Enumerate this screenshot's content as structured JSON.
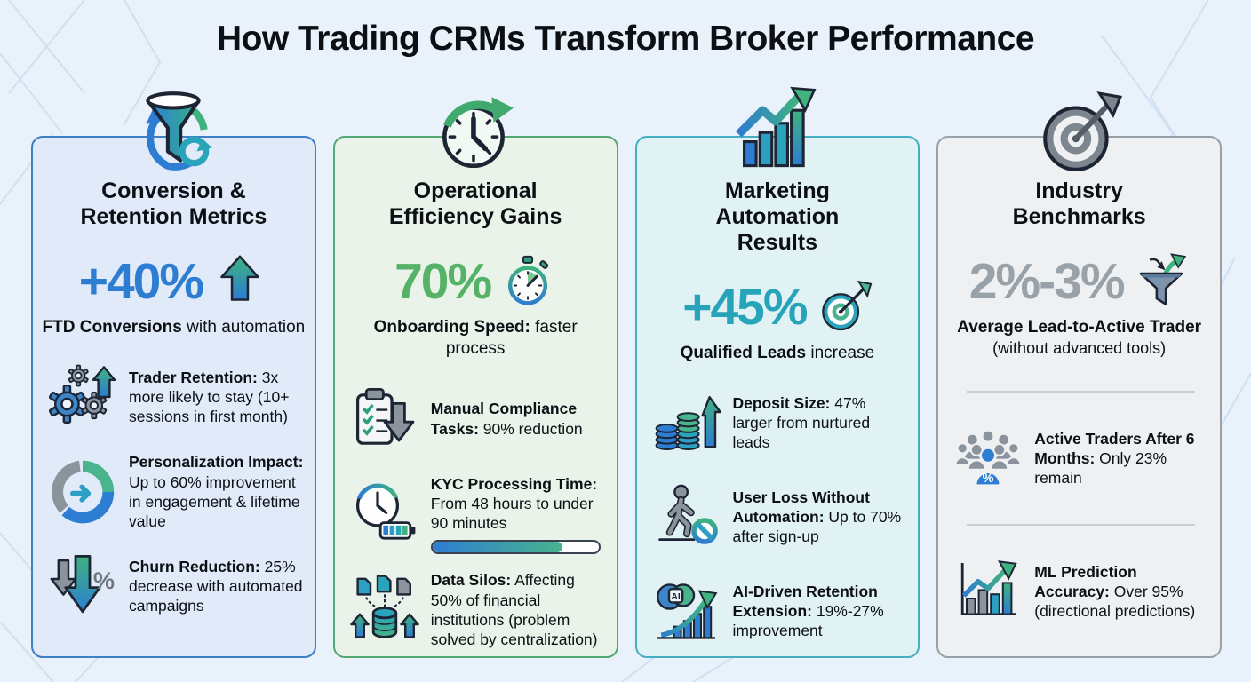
{
  "title": "How Trading CRMs Transform Broker Performance",
  "columns": [
    {
      "title": "Conversion & Retention Metrics",
      "border_color": "#3e7fc6",
      "bg_color": "#e0eaf8",
      "stat": "+40%",
      "stat_color": "#2d7dd2",
      "stat_icon": "up-arrow",
      "caption_bold": "FTD Conversions",
      "caption_rest": "with automation",
      "items": [
        {
          "icon": "gears-up-arrow",
          "bold": "Trader Retention:",
          "text": "3x more likely to stay (10+ sessions in first month)"
        },
        {
          "icon": "donut-refresh",
          "bold": "Personalization Impact:",
          "text": "Up to 60% improvement in engagement & lifetime value"
        },
        {
          "icon": "down-arrows-percent",
          "bold": "Churn Reduction:",
          "text": "25% decrease with automated campaigns"
        }
      ]
    },
    {
      "title": "Operational Efficiency Gains",
      "border_color": "#55a873",
      "bg_color": "#e9f3e9",
      "stat": "70%",
      "stat_color": "#56b266",
      "stat_icon": "stopwatch",
      "caption_bold": "Onboarding Speed:",
      "caption_rest": "faster process",
      "items": [
        {
          "icon": "clipboard-check-down",
          "bold": "Manual Compliance Tasks:",
          "text": "90% reduction"
        },
        {
          "icon": "clock-battery",
          "bold": "KYC Processing Time:",
          "text": "From 48 hours to under 90 minutes",
          "progress_percent": 78
        },
        {
          "icon": "data-silos",
          "bold": "Data Silos:",
          "text": "Affecting 50% of financial institutions (problem solved by centralization)"
        }
      ]
    },
    {
      "title": "Marketing Automation Results",
      "border_color": "#45aec2",
      "bg_color": "#e1f2f5",
      "stat": "+45%",
      "stat_color": "#27a3ba",
      "stat_icon": "target-dart",
      "caption_bold": "Qualified Leads",
      "caption_rest": "increase",
      "items": [
        {
          "icon": "coins-up-arrow",
          "bold": "Deposit Size:",
          "text": "47% larger from nurtured leads"
        },
        {
          "icon": "user-walk-block",
          "bold": "User Loss Without Automation:",
          "text": "Up to 70% after sign-up"
        },
        {
          "icon": "ai-brain-growth",
          "bold": "AI-Driven Retention Extension:",
          "text": "19%-27% improvement"
        }
      ]
    },
    {
      "title": "Industry Benchmarks",
      "border_color": "#98a0a8",
      "bg_color": "#eef0f2",
      "stat": "2%-3%",
      "stat_color": "#99a1a9",
      "stat_icon": "funnel-exchange",
      "caption_bold": "Average Lead-to-Active Trader",
      "caption_rest": "(without advanced tools)",
      "items": [
        {
          "icon": "people-percent",
          "bold": "Active Traders After 6 Months:",
          "text": "Only 23% remain"
        },
        {
          "icon": "ml-growth-chart",
          "bold": "ML Prediction Accuracy:",
          "text": "Over 95% (directional predictions)"
        }
      ]
    }
  ]
}
